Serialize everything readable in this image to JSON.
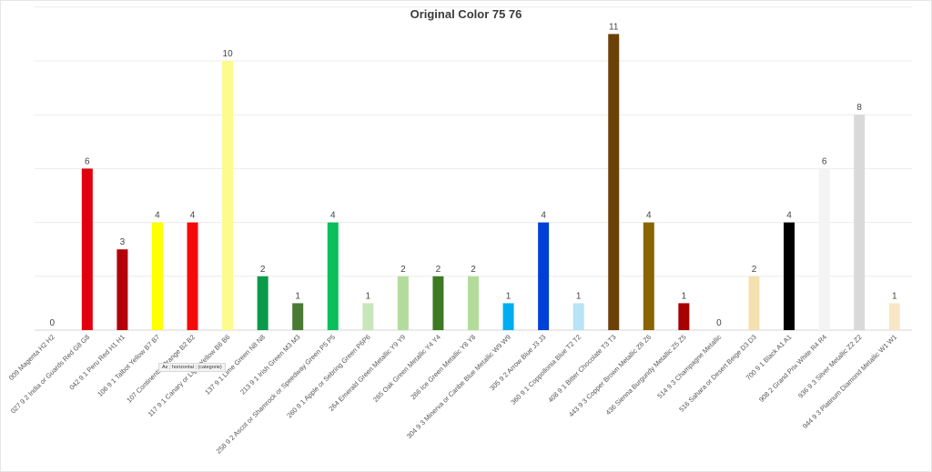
{
  "chart_data": {
    "type": "bar",
    "title": "Original Color 75 76",
    "xlabel": "",
    "ylabel": "",
    "ylim": [
      0,
      12
    ],
    "grid": true,
    "categories": [
      "009 Magenta H2 H2",
      "027 9 2 India or Guards Red G8 G8",
      "042 9 1 Peru Red H1 H1",
      "106 9 1 Talbot Yellow B7 B7",
      "107 Continental Orange B2 B2",
      "117 9 1 Canary or Light Yellow B6 B6",
      "137 9 1 Lime Green N8 N8",
      "213 9 1 Irish Green M3 M3",
      "258 9 2 Ascot or Shamrock or Speedway Green P5 P5",
      "260 9 1 Apple or Sebring Green P6P6",
      "264 Emerald Green Metallic Y9 Y9",
      "265 Oak Green Metallic Y4 Y4",
      "266 Ice Green Metallic Y8 Y8",
      "304 9 3 Minerva or Caribe Blue Metallic W9 W9",
      "305 9 2 Arrow Blue J3 J3",
      "360 9 1 Coppollonia Blue T2 T2",
      "408 9 1 Bitter Chocolate T3 T3",
      "443 9 3 Copper Brown Metallic Z6 Z6",
      "436 Sienna Burgundy Metallic Z5 Z5",
      "514 9 3 Champagne Metallic",
      "516 Sahara or Desert Beige D3 D3",
      "700 9 1 Black A1 A1",
      "908 2 Grand Prix White R4 R4",
      "936 9 3 Silver Metallic Z2 Z2",
      "944 9 3 Platinum Diamond Metallic W1 W1"
    ],
    "values": [
      0,
      6,
      3,
      4,
      4,
      10,
      2,
      1,
      4,
      1,
      2,
      2,
      2,
      1,
      4,
      1,
      11,
      4,
      1,
      0,
      2,
      4,
      6,
      8,
      1
    ],
    "colors": [
      "#d1007d",
      "#e0000e",
      "#b30009",
      "#ffff00",
      "#f50a0a",
      "#fdfb8c",
      "#0a9a4b",
      "#4b7a35",
      "#0abf5a",
      "#c8e6bb",
      "#b3dc9c",
      "#3d7a23",
      "#b3dc9c",
      "#00aeef",
      "#0040d8",
      "#b8e4f8",
      "#6b4108",
      "#8a6400",
      "#a60000",
      "#f3e6c2",
      "#f5e0b0",
      "#000000",
      "#f4f4f4",
      "#d9d9d9",
      "#f7e7c6"
    ]
  },
  "tooltip": "Ax ; horizontal ; (categorie)"
}
